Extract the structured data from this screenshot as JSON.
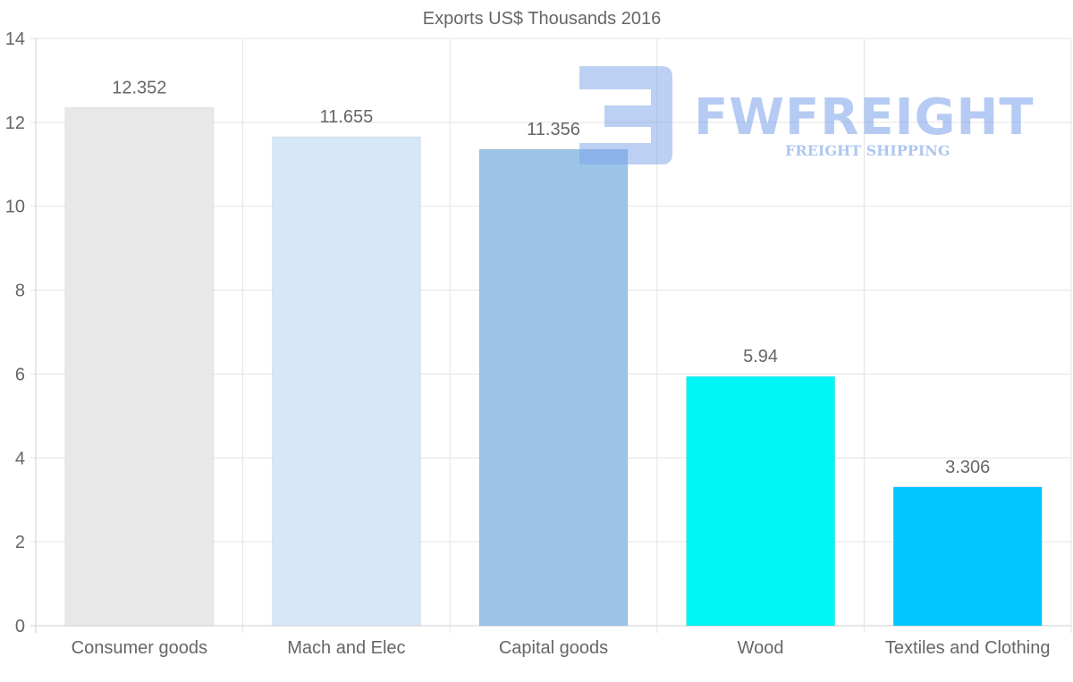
{
  "chart_data": {
    "type": "bar",
    "title": "Exports US$ Thousands 2016",
    "categories": [
      "Consumer goods",
      "Mach and Elec",
      "Capital goods",
      "Wood",
      "Textiles and Clothing"
    ],
    "values": [
      12.352,
      11.655,
      11.356,
      5.94,
      3.306
    ],
    "data_labels": [
      "12.352",
      "11.655",
      "11.356",
      "5.94",
      "3.306"
    ],
    "colors": [
      "#e8e8e8",
      "#d6e7f8",
      "#9cc4e8",
      "#00f6f6",
      "#00c8ff"
    ],
    "ylim": [
      0,
      14
    ],
    "yticks": [
      0,
      2,
      4,
      6,
      8,
      10,
      12,
      14
    ],
    "xlabel": "",
    "ylabel": "",
    "grid": true
  },
  "watermark": {
    "brand": "FWFREIGHT",
    "tagline": "FREIGHT SHIPPING",
    "color": "#7aa2ea"
  }
}
